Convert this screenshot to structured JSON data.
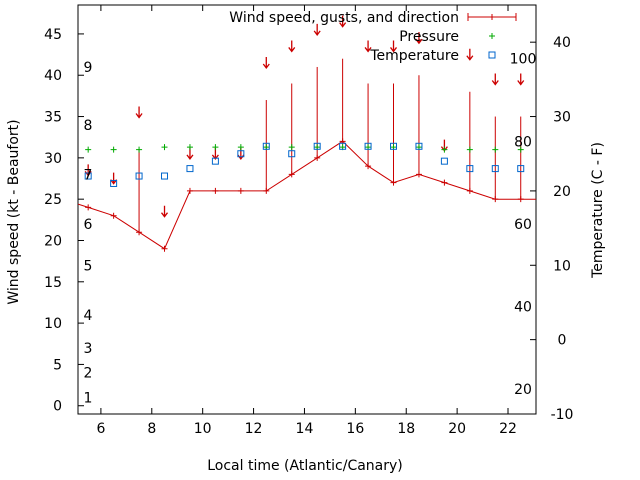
{
  "chart_data": {
    "type": "line",
    "xlabel": "Local time (Atlantic/Canary)",
    "ylabel": "Wind speed (kt - Beaufort)",
    "y2label": "Temperature (C - F)",
    "xlim": [
      5.1,
      23.1
    ],
    "ylim": [
      -1,
      48.5
    ],
    "y2lim": [
      -10,
      45
    ],
    "x_ticks": [
      6,
      8,
      10,
      12,
      14,
      16,
      18,
      20,
      22
    ],
    "y_ticks": [
      0,
      5,
      10,
      15,
      20,
      25,
      30,
      35,
      40,
      45
    ],
    "y2_ticks": [
      -10,
      0,
      10,
      20,
      30,
      40
    ],
    "beaufort_labels": [
      {
        "label": "1",
        "kt": 1
      },
      {
        "label": "2",
        "kt": 4
      },
      {
        "label": "3",
        "kt": 7
      },
      {
        "label": "4",
        "kt": 11
      },
      {
        "label": "5",
        "kt": 17
      },
      {
        "label": "6",
        "kt": 22
      },
      {
        "label": "7",
        "kt": 28
      },
      {
        "label": "8",
        "kt": 34
      },
      {
        "label": "9",
        "kt": 41
      }
    ],
    "fahrenheit_labels": [
      {
        "label": "20",
        "f": 20
      },
      {
        "label": "40",
        "f": 40
      },
      {
        "label": "60",
        "f": 60
      },
      {
        "label": "80",
        "f": 80
      },
      {
        "label": "100",
        "f": 100
      }
    ],
    "series": [
      {
        "name": "Wind speed, gusts, and direction",
        "color": "#cc0000",
        "x": [
          5.5,
          6.5,
          7.5,
          8.5,
          9.5,
          10.5,
          11.5,
          12.5,
          13.5,
          14.5,
          15.5,
          16.5,
          17.5,
          18.5,
          19.5,
          20.5,
          21.5,
          22.5
        ],
        "values": [
          24,
          23,
          21,
          19,
          26,
          26,
          26,
          26,
          28,
          30,
          32,
          29,
          27,
          28,
          27,
          26,
          25,
          25
        ],
        "gusts": [
          null,
          null,
          31,
          null,
          null,
          null,
          null,
          37,
          39,
          41,
          42,
          39,
          39,
          40,
          null,
          38,
          35,
          35
        ],
        "direction_marker_kt": [
          28,
          27,
          35,
          23,
          30,
          30,
          30,
          41,
          43,
          45,
          46,
          43,
          43,
          44,
          31,
          42,
          39,
          39
        ]
      },
      {
        "name": "Pressure",
        "color": "#00aa00",
        "x": [
          5.5,
          6.5,
          7.5,
          8.5,
          9.5,
          10.5,
          11.5,
          12.5,
          13.5,
          14.5,
          15.5,
          16.5,
          17.5,
          18.5,
          19.5,
          20.5,
          21.5,
          22.5
        ],
        "values": [
          31,
          31,
          31,
          31.3,
          31.3,
          31.3,
          31.3,
          31.3,
          31.3,
          31.3,
          31.3,
          31.3,
          31.3,
          31.3,
          31,
          31,
          31,
          31
        ]
      },
      {
        "name": "Temperature",
        "color": "#0066cc",
        "axis": "right",
        "x": [
          5.5,
          6.5,
          7.5,
          8.5,
          9.5,
          10.5,
          11.5,
          12.5,
          13.5,
          14.5,
          15.5,
          16.5,
          17.5,
          18.5,
          19.5,
          20.5,
          21.5,
          22.5
        ],
        "values": [
          22,
          21,
          22,
          22,
          23,
          24,
          25,
          26,
          25,
          26,
          26,
          26,
          26,
          26,
          24,
          23,
          23,
          23
        ]
      }
    ],
    "legend_position": "top-right",
    "grid": false
  }
}
